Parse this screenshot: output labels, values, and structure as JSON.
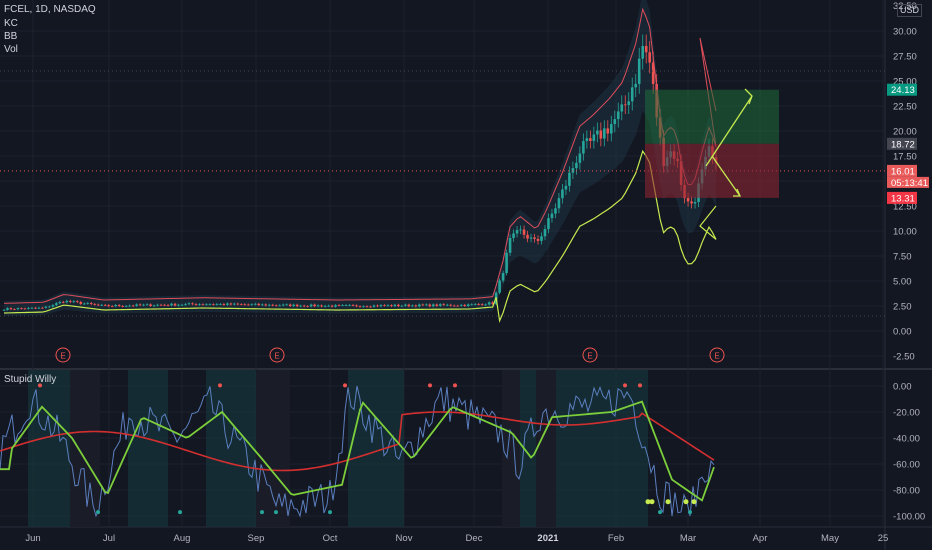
{
  "header": {
    "symbol_line": "FCEL, 1D, NASDAQ",
    "indicators": [
      "KC",
      "BB",
      "Vol"
    ],
    "currency": "USD",
    "corner_label": "32.50"
  },
  "osc_title": "Stupid Willy",
  "chart_data": {
    "type": "candlestick",
    "symbol": "FCEL",
    "interval": "1D",
    "exchange": "NASDAQ",
    "price_axis": {
      "labels": [
        "30.00",
        "27.50",
        "25.00",
        "22.50",
        "20.00",
        "17.50",
        "15.00",
        "12.50",
        "10.00",
        "7.50",
        "5.00",
        "2.50",
        "0.00",
        "-2.50"
      ],
      "ylim": [
        -3.5,
        32.5
      ]
    },
    "osc_axis": {
      "labels": [
        "0.00",
        "-20.00",
        "-40.00",
        "-60.00",
        "-80.00",
        "-100.00"
      ],
      "ylim": [
        -105,
        5
      ]
    },
    "time_axis": [
      "Jun",
      "Jul",
      "Aug",
      "Sep",
      "Oct",
      "Nov",
      "Dec",
      "2021",
      "Feb",
      "Mar",
      "Apr",
      "May",
      "25"
    ],
    "price_tags": {
      "target": "24.13",
      "upper": "18.72",
      "last": "16.01",
      "countdown": "05:13:41",
      "stop": "13.31"
    },
    "earnings_marker": "E",
    "colors": {
      "bg": "#131722",
      "up": "#26a69a",
      "down": "#ef5350",
      "kc_upper": "#e04d5a",
      "bb_lower": "#c6ea4f",
      "osc": "#5b7fbf",
      "osc_signal": "#7ccf3b",
      "osc_slow": "#d42f2f",
      "profit": "#1f6b3a",
      "loss": "#8b2432"
    }
  }
}
